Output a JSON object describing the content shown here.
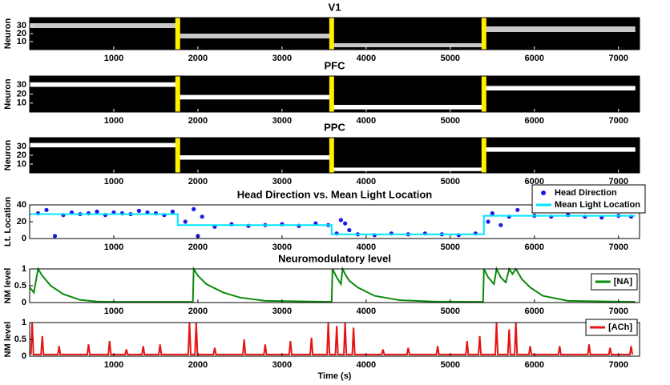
{
  "chart_data": [
    {
      "type": "raster",
      "title": "V1",
      "ylabel": "Neuron",
      "xlim": [
        0,
        7250
      ],
      "xticks": [
        1000,
        2000,
        3000,
        4000,
        5000,
        6000,
        7000
      ],
      "ylim": [
        0,
        40
      ],
      "yticks": [
        10,
        20,
        30
      ],
      "background": "#000000",
      "color": "#c8c8c8",
      "marker_color": "#ffee00",
      "markers": [
        1760,
        3590,
        5400
      ],
      "segments": [
        {
          "x": [
            0,
            1760
          ],
          "y": [
            27,
            33
          ]
        },
        {
          "x": [
            1760,
            3590
          ],
          "y": [
            14,
            20
          ]
        },
        {
          "x": [
            3590,
            5400
          ],
          "y": [
            3,
            8
          ]
        },
        {
          "x": [
            5400,
            7200
          ],
          "y": [
            22,
            29
          ]
        }
      ]
    },
    {
      "type": "raster",
      "title": "PFC",
      "ylabel": "Neuron",
      "xlim": [
        0,
        7250
      ],
      "xticks": [
        1000,
        2000,
        3000,
        4000,
        5000,
        6000,
        7000
      ],
      "ylim": [
        0,
        40
      ],
      "yticks": [
        10,
        20,
        30
      ],
      "background": "#000000",
      "color": "#ffffff",
      "marker_color": "#ffee00",
      "markers": [
        1760,
        3590,
        5400
      ],
      "segments": [
        {
          "x": [
            0,
            1760
          ],
          "y": [
            28,
            33
          ]
        },
        {
          "x": [
            1760,
            3590
          ],
          "y": [
            14,
            19
          ]
        },
        {
          "x": [
            3590,
            5400
          ],
          "y": [
            3,
            8
          ]
        },
        {
          "x": [
            5400,
            7200
          ],
          "y": [
            24,
            29
          ]
        }
      ]
    },
    {
      "type": "raster",
      "title": "PPC",
      "ylabel": "Neuron",
      "xlim": [
        0,
        7250
      ],
      "xticks": [
        1000,
        2000,
        3000,
        4000,
        5000,
        6000,
        7000
      ],
      "ylim": [
        0,
        40
      ],
      "yticks": [
        10,
        20,
        30
      ],
      "background": "#000000",
      "color": "#ffffff",
      "marker_color": "#ffee00",
      "markers": [
        1760,
        3590,
        5400
      ],
      "segments": [
        {
          "x": [
            0,
            1760
          ],
          "y": [
            29,
            34
          ]
        },
        {
          "x": [
            1760,
            3590
          ],
          "y": [
            15,
            20
          ]
        },
        {
          "x": [
            3590,
            5400
          ],
          "y": [
            2,
            6
          ]
        },
        {
          "x": [
            5400,
            7200
          ],
          "y": [
            24,
            29
          ]
        }
      ]
    },
    {
      "type": "line",
      "title": "Head Direction vs. Mean Light Location",
      "ylabel": "Lt. Location",
      "xlim": [
        0,
        7250
      ],
      "xticks": [
        1000,
        2000,
        3000,
        4000,
        5000,
        6000,
        7000
      ],
      "ylim": [
        0,
        40
      ],
      "yticks": [
        0,
        20,
        40
      ],
      "legend": "upper right",
      "series": [
        {
          "name": "Head Direction",
          "type": "scatter",
          "color": "#1a1ae6",
          "x": [
            100,
            200,
            300,
            400,
            500,
            600,
            700,
            800,
            900,
            1000,
            1100,
            1200,
            1300,
            1400,
            1500,
            1600,
            1700,
            1850,
            1950,
            2000,
            2050,
            2200,
            2400,
            2600,
            2800,
            3000,
            3200,
            3400,
            3550,
            3650,
            3700,
            3750,
            3800,
            3900,
            4100,
            4300,
            4500,
            4700,
            4900,
            5100,
            5300,
            5450,
            5500,
            5600,
            5700,
            5800,
            6000,
            6200,
            6400,
            6600,
            6800,
            7000,
            7150
          ],
          "values": [
            30,
            34,
            3,
            28,
            31,
            29,
            30,
            32,
            28,
            31,
            30,
            29,
            33,
            31,
            30,
            28,
            32,
            20,
            35,
            3,
            26,
            14,
            17,
            15,
            16,
            17,
            15,
            18,
            16,
            6,
            22,
            18,
            10,
            5,
            4,
            6,
            5,
            6,
            5,
            4,
            6,
            20,
            30,
            16,
            26,
            34,
            27,
            26,
            28,
            26,
            25,
            27,
            26
          ]
        },
        {
          "name": "Mean Light Location",
          "color": "#00e5ff",
          "x": [
            0,
            1760,
            1760,
            3590,
            3590,
            5400,
            5400,
            7200
          ],
          "values": [
            29,
            29,
            16,
            16,
            5,
            5,
            27,
            27
          ]
        }
      ]
    },
    {
      "type": "line",
      "title": "Neuromodulatory level",
      "ylabel": "NM level",
      "xlim": [
        0,
        7250
      ],
      "xticks": [
        1000,
        2000,
        3000,
        4000,
        5000,
        6000,
        7000
      ],
      "ylim": [
        0,
        1
      ],
      "yticks": [
        0,
        0.5,
        1
      ],
      "legend": "upper right",
      "series": [
        {
          "name": "[NA]",
          "color": "#0a8a0a",
          "x": [
            0,
            50,
            100,
            150,
            250,
            400,
            600,
            800,
            1000,
            1940,
            1950,
            2000,
            2100,
            2300,
            2500,
            2800,
            3590,
            3600,
            3650,
            3700,
            3720,
            3760,
            3800,
            3900,
            4100,
            4400,
            4800,
            5390,
            5400,
            5450,
            5520,
            5550,
            5600,
            5660,
            5700,
            5740,
            5780,
            5850,
            5950,
            6100,
            6400,
            7200
          ],
          "values": [
            0.45,
            0.3,
            1,
            0.8,
            0.5,
            0.25,
            0.08,
            0.03,
            0.02,
            0.02,
            1,
            0.8,
            0.55,
            0.3,
            0.15,
            0.05,
            0.02,
            1,
            0.75,
            0.55,
            1,
            0.8,
            0.65,
            0.45,
            0.2,
            0.07,
            0.03,
            0.02,
            1,
            0.75,
            0.55,
            1,
            0.75,
            0.6,
            1,
            0.85,
            1,
            0.7,
            0.45,
            0.2,
            0.05,
            0.02
          ]
        }
      ]
    },
    {
      "type": "line",
      "ylabel": "NM level",
      "xlabel": "Time (s)",
      "xlim": [
        0,
        7250
      ],
      "xticks": [
        1000,
        2000,
        3000,
        4000,
        5000,
        6000,
        7000
      ],
      "ylim": [
        0,
        1
      ],
      "yticks": [
        0,
        0.5,
        1
      ],
      "legend": "upper right",
      "series": [
        {
          "name": "[ACh]",
          "color": "#e61414",
          "x": [
            15,
            30,
            45,
            135,
            150,
            165,
            335,
            350,
            365,
            685,
            700,
            715,
            935,
            950,
            965,
            1135,
            1150,
            1165,
            1335,
            1350,
            1365,
            1535,
            1550,
            1565,
            1885,
            1900,
            1915,
            1965,
            1980,
            1995,
            2185,
            2200,
            2215,
            2535,
            2550,
            2565,
            2785,
            2800,
            2815,
            3085,
            3100,
            3115,
            3335,
            3350,
            3365,
            3535,
            3550,
            3565,
            3635,
            3650,
            3665,
            3735,
            3750,
            3765,
            3835,
            3850,
            3865,
            4185,
            4200,
            4215,
            4485,
            4500,
            4515,
            4835,
            4850,
            4865,
            5185,
            5200,
            5215,
            5335,
            5350,
            5365,
            5535,
            5550,
            5565,
            5685,
            5700,
            5715,
            5765,
            5780,
            5795,
            5935,
            5950,
            5965,
            6285,
            6300,
            6315,
            6635,
            6650,
            6665,
            6885,
            6900,
            6915,
            7135,
            7150,
            7165
          ],
          "values": [
            0.05,
            1,
            0.05,
            0.05,
            0.6,
            0.05,
            0.05,
            0.3,
            0.05,
            0.05,
            0.35,
            0.05,
            0.05,
            0.45,
            0.05,
            0.05,
            0.2,
            0.05,
            0.05,
            0.3,
            0.05,
            0.05,
            0.35,
            0.05,
            0.05,
            1,
            0.05,
            0.05,
            1,
            0.05,
            0.05,
            0.25,
            0.05,
            0.05,
            0.5,
            0.05,
            0.05,
            0.35,
            0.05,
            0.05,
            0.45,
            0.05,
            0.05,
            0.55,
            0.05,
            0.05,
            1,
            0.05,
            0.05,
            0.9,
            0.05,
            0.05,
            1,
            0.05,
            0.05,
            0.85,
            0.05,
            0.05,
            0.2,
            0.05,
            0.05,
            0.25,
            0.05,
            0.05,
            0.3,
            0.05,
            0.05,
            0.45,
            0.05,
            0.05,
            0.6,
            0.05,
            0.05,
            1,
            0.05,
            0.05,
            0.8,
            0.05,
            0.05,
            1,
            0.05,
            0.05,
            0.3,
            0.05,
            0.05,
            0.3,
            0.05,
            0.05,
            0.35,
            0.05,
            0.05,
            0.25,
            0.05,
            0.05,
            0.3,
            0.05
          ]
        }
      ]
    }
  ]
}
